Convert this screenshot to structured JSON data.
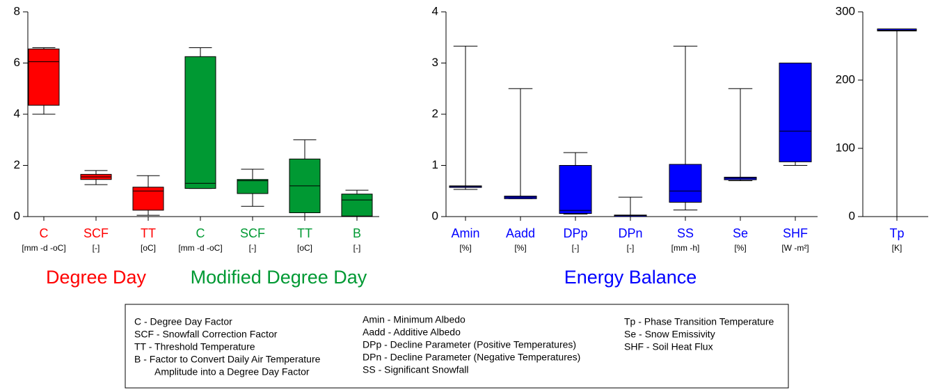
{
  "chart_data": [
    {
      "type": "box",
      "ylim": [
        0,
        8
      ],
      "yticks": [
        0,
        2,
        4,
        6,
        8
      ],
      "series": [
        {
          "name": "Degree Day",
          "color": "#ff0000",
          "categories": [
            "C",
            "SCF",
            "TT"
          ],
          "units": [
            "[mm -d -oC]",
            "[-]",
            "[oC]"
          ],
          "min": [
            4.0,
            1.25,
            0.05
          ],
          "q1": [
            4.35,
            1.45,
            0.25
          ],
          "median": [
            6.05,
            1.55,
            1.0
          ],
          "q3": [
            6.55,
            1.65,
            1.15
          ],
          "max": [
            6.6,
            1.8,
            1.6
          ]
        },
        {
          "name": "Modified Degree Day",
          "color": "#009933",
          "categories": [
            "C",
            "SCF",
            "TT",
            "B"
          ],
          "units": [
            "[mm -d -oC]",
            "[-]",
            "[oC]",
            "[-]"
          ],
          "min": [
            1.1,
            0.4,
            0.0,
            0.0
          ],
          "q1": [
            1.1,
            0.9,
            0.15,
            0.02
          ],
          "median": [
            1.3,
            1.4,
            1.2,
            0.65
          ],
          "q3": [
            6.25,
            1.45,
            2.25,
            0.88
          ],
          "max": [
            6.6,
            1.85,
            3.0,
            1.03
          ]
        }
      ]
    },
    {
      "type": "box",
      "ylim": [
        0,
        4
      ],
      "yticks": [
        0,
        1,
        2,
        3,
        4
      ],
      "series": [
        {
          "name": "Energy Balance",
          "color": "#0000ff",
          "categories": [
            "Amin",
            "Aadd",
            "DPp",
            "DPn",
            "SS",
            "Se",
            "SHF"
          ],
          "units": [
            "[%]",
            "[%]",
            "[-]",
            "[-]",
            "[mm -h]",
            "[%]",
            "[W -m²]"
          ],
          "min": [
            0.53,
            0.35,
            0.05,
            0.0,
            0.13,
            0.7,
            1.0
          ],
          "q1": [
            0.57,
            0.35,
            0.06,
            0.0,
            0.28,
            0.72,
            1.07
          ],
          "median": [
            0.59,
            0.38,
            0.12,
            0.02,
            0.5,
            0.75,
            1.67
          ],
          "q3": [
            0.6,
            0.4,
            1.0,
            0.03,
            1.02,
            0.77,
            3.0
          ],
          "max": [
            3.33,
            2.5,
            1.25,
            0.38,
            3.33,
            2.5,
            3.0
          ]
        }
      ]
    },
    {
      "type": "box",
      "ylim": [
        0,
        300
      ],
      "yticks": [
        0,
        100,
        200,
        300
      ],
      "series": [
        {
          "color": "#0000ff",
          "categories": [
            "Tp"
          ],
          "units": [
            "[K]"
          ],
          "min": [
            0
          ],
          "q1": [
            272
          ],
          "median": [
            273
          ],
          "q3": [
            275
          ],
          "max": [
            275
          ]
        }
      ]
    }
  ],
  "legend": {
    "columns": [
      [
        "C - Degree Day Factor",
        "SCF - Snowfall Correction Factor",
        "TT - Threshold Temperature",
        "B - Factor to Convert Daily Air Temperature",
        "Amplitude into a Degree Day Factor"
      ],
      [
        "Amin - Minimum Albedo",
        "Aadd - Additive Albedo",
        "DPp - Decline Parameter (Positive Temperatures)",
        "DPn - Decline Parameter (Negative Temperatures)",
        "SS - Significant Snowfall"
      ],
      [
        "Tp - Phase Transition Temperature",
        "Se - Snow Emissivity",
        "SHF - Soil Heat Flux"
      ]
    ]
  }
}
